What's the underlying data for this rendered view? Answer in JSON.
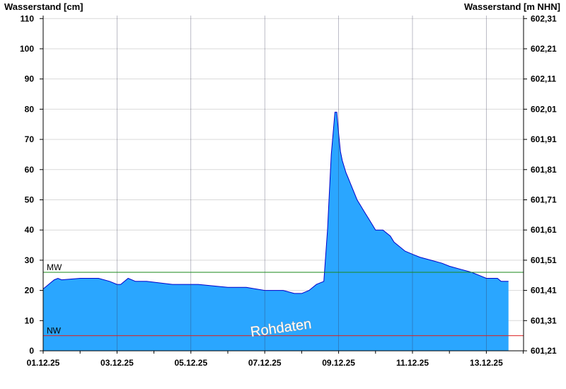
{
  "chart_data": {
    "type": "area",
    "title": "",
    "ylabel": "Wasserstand [cm]",
    "ylabel_right": "Wasserstand [m NHN]",
    "ylim": [
      0,
      111
    ],
    "yticks": [
      0,
      10,
      20,
      30,
      40,
      50,
      60,
      70,
      80,
      90,
      100,
      110
    ],
    "yticks_right": [
      "601,21",
      "601,31",
      "601,41",
      "601,51",
      "601,61",
      "601,71",
      "601,81",
      "601,91",
      "602,01",
      "602,11",
      "602,21",
      "602,31"
    ],
    "x_start": "01.12.25",
    "x_end": "13.12.25",
    "xticks": [
      "01.12.25",
      "03.12.25",
      "05.12.25",
      "07.12.25",
      "09.12.25",
      "11.12.25",
      "13.12.25"
    ],
    "grid": true,
    "series": [
      {
        "color": "#2aa6ff",
        "line_color": "#0000cc",
        "x": [
          0,
          0.1,
          0.2,
          0.3,
          0.4,
          0.5,
          1.0,
          1.2,
          1.5,
          1.8,
          2.0,
          2.1,
          2.3,
          2.5,
          2.8,
          3.5,
          3.8,
          4.2,
          5.0,
          5.5,
          6.0,
          6.5,
          6.8,
          7.0,
          7.2,
          7.4,
          7.6,
          7.7,
          7.8,
          7.9,
          7.95,
          8.0,
          8.05,
          8.1,
          8.15,
          8.2,
          8.25,
          8.3,
          8.4,
          8.5,
          8.6,
          8.7,
          8.8,
          8.9,
          9.0,
          9.2,
          9.4,
          9.5,
          9.6,
          9.8,
          10.0,
          10.2,
          10.5,
          10.8,
          11.0,
          11.3,
          11.6,
          11.8,
          12.0,
          12.3,
          12.4,
          12.6
        ],
        "values": [
          20.5,
          21.5,
          22.5,
          23.5,
          24,
          23.5,
          24,
          24,
          24,
          23,
          22,
          22,
          24,
          23,
          23,
          22,
          22,
          22,
          21,
          21,
          20,
          20,
          19,
          19,
          20,
          22,
          23,
          40,
          65,
          79,
          79,
          72,
          66,
          63,
          61,
          59,
          57.5,
          56,
          53,
          50,
          48,
          46,
          44,
          42,
          40,
          40,
          38,
          36,
          35,
          33,
          32,
          31,
          30,
          29,
          28,
          27,
          26,
          25,
          24,
          24,
          23,
          23
        ]
      }
    ],
    "reference_lines": [
      {
        "label": "MW",
        "value": 26,
        "color": "#1a8a1a"
      },
      {
        "label": "NW",
        "value": 5,
        "color": "#dd2222"
      }
    ],
    "annotation": "Rohdaten"
  }
}
